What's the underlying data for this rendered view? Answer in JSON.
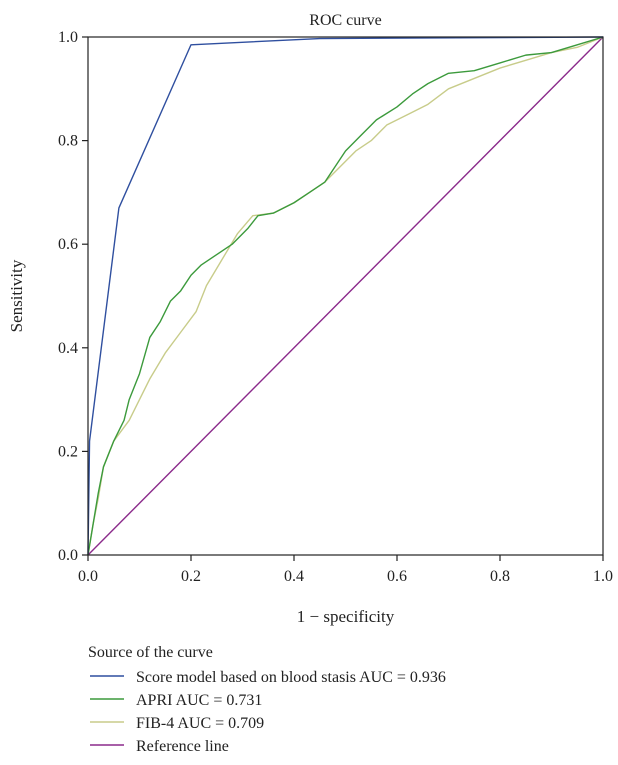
{
  "chart_data": {
    "type": "line",
    "title": "ROC curve",
    "xlabel": "1 − specificity",
    "ylabel": "Sensitivity",
    "xlim": [
      0,
      1
    ],
    "ylim": [
      0,
      1
    ],
    "xticks": [
      "0.0",
      "0.2",
      "0.4",
      "0.6",
      "0.8",
      "1.0"
    ],
    "yticks": [
      "0.0",
      "0.2",
      "0.4",
      "0.6",
      "0.8",
      "1.0"
    ],
    "grid": false,
    "legend_title": "Source of the curve",
    "legend_position": "bottom",
    "series": [
      {
        "name": "Score model based on blood stasis AUC = 0.936",
        "color": "#2f4f9f",
        "points": [
          [
            0,
            0
          ],
          [
            0.003,
            0.22
          ],
          [
            0.06,
            0.67
          ],
          [
            0.2,
            0.985
          ],
          [
            0.45,
            0.997
          ],
          [
            1,
            1
          ]
        ]
      },
      {
        "name": "APRI AUC = 0.731",
        "color": "#3c9a3c",
        "points": [
          [
            0,
            0
          ],
          [
            0.01,
            0.06
          ],
          [
            0.02,
            0.12
          ],
          [
            0.03,
            0.17
          ],
          [
            0.05,
            0.22
          ],
          [
            0.07,
            0.26
          ],
          [
            0.08,
            0.3
          ],
          [
            0.1,
            0.35
          ],
          [
            0.12,
            0.42
          ],
          [
            0.14,
            0.45
          ],
          [
            0.16,
            0.49
          ],
          [
            0.18,
            0.51
          ],
          [
            0.2,
            0.54
          ],
          [
            0.22,
            0.56
          ],
          [
            0.25,
            0.58
          ],
          [
            0.28,
            0.6
          ],
          [
            0.31,
            0.63
          ],
          [
            0.33,
            0.655
          ],
          [
            0.36,
            0.66
          ],
          [
            0.4,
            0.68
          ],
          [
            0.43,
            0.7
          ],
          [
            0.46,
            0.72
          ],
          [
            0.48,
            0.75
          ],
          [
            0.5,
            0.78
          ],
          [
            0.53,
            0.81
          ],
          [
            0.56,
            0.84
          ],
          [
            0.6,
            0.865
          ],
          [
            0.63,
            0.89
          ],
          [
            0.66,
            0.91
          ],
          [
            0.7,
            0.93
          ],
          [
            0.75,
            0.935
          ],
          [
            0.8,
            0.95
          ],
          [
            0.85,
            0.965
          ],
          [
            0.9,
            0.97
          ],
          [
            0.95,
            0.985
          ],
          [
            1,
            1
          ]
        ]
      },
      {
        "name": "FIB-4 AUC = 0.709",
        "color": "#c8cc8a",
        "points": [
          [
            0,
            0
          ],
          [
            0.01,
            0.06
          ],
          [
            0.02,
            0.11
          ],
          [
            0.03,
            0.17
          ],
          [
            0.05,
            0.22
          ],
          [
            0.08,
            0.26
          ],
          [
            0.1,
            0.3
          ],
          [
            0.12,
            0.34
          ],
          [
            0.15,
            0.39
          ],
          [
            0.18,
            0.43
          ],
          [
            0.21,
            0.47
          ],
          [
            0.23,
            0.52
          ],
          [
            0.26,
            0.57
          ],
          [
            0.29,
            0.62
          ],
          [
            0.32,
            0.655
          ],
          [
            0.36,
            0.66
          ],
          [
            0.4,
            0.68
          ],
          [
            0.43,
            0.7
          ],
          [
            0.46,
            0.72
          ],
          [
            0.49,
            0.75
          ],
          [
            0.52,
            0.78
          ],
          [
            0.55,
            0.8
          ],
          [
            0.58,
            0.83
          ],
          [
            0.62,
            0.85
          ],
          [
            0.66,
            0.87
          ],
          [
            0.7,
            0.9
          ],
          [
            0.75,
            0.92
          ],
          [
            0.8,
            0.94
          ],
          [
            0.85,
            0.955
          ],
          [
            0.9,
            0.97
          ],
          [
            0.95,
            0.98
          ],
          [
            1,
            1
          ]
        ]
      },
      {
        "name": "Reference line",
        "color": "#8b2a8b",
        "points": [
          [
            0,
            0
          ],
          [
            1,
            1
          ]
        ]
      }
    ]
  }
}
